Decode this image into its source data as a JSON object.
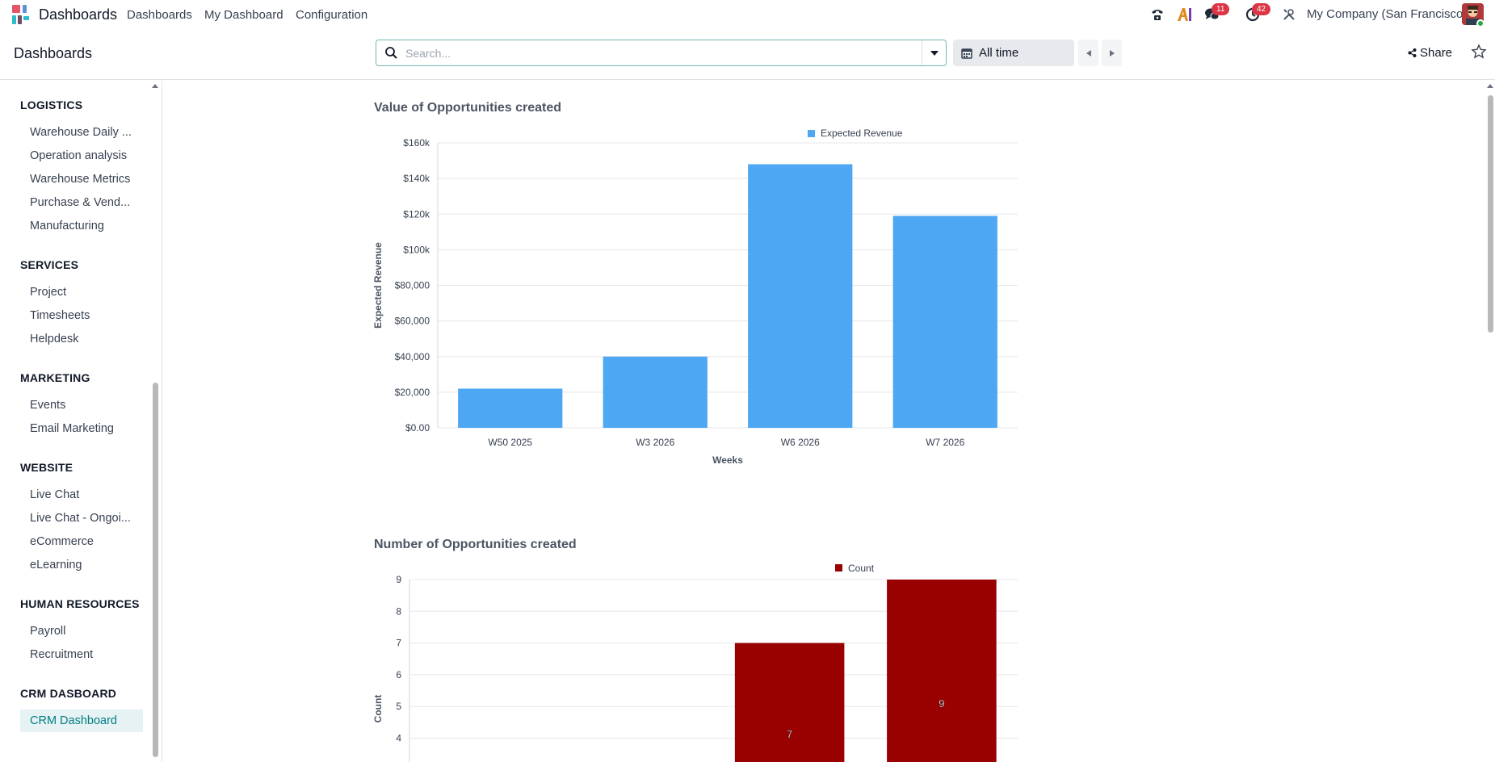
{
  "navbar": {
    "app_name": "Dashboards",
    "menus": [
      "Dashboards",
      "My Dashboard",
      "Configuration"
    ],
    "messages_count": "11",
    "activities_count": "42",
    "company": "My Company (San Francisco)",
    "icons": [
      "phone-icon",
      "ai-icon",
      "messages-icon",
      "activities-icon",
      "debug-tools-icon"
    ]
  },
  "control": {
    "breadcrumb": "Dashboards",
    "search_placeholder": "Search...",
    "date_filter": "All time",
    "share_label": "Share"
  },
  "sidebar": {
    "groups": [
      {
        "title": "LOGISTICS",
        "items": [
          "Warehouse Daily ...",
          "Operation analysis",
          "Warehouse Metrics",
          "Purchase & Vend...",
          "Manufacturing"
        ]
      },
      {
        "title": "SERVICES",
        "items": [
          "Project",
          "Timesheets",
          "Helpdesk"
        ]
      },
      {
        "title": "MARKETING",
        "items": [
          "Events",
          "Email Marketing"
        ]
      },
      {
        "title": "WEBSITE",
        "items": [
          "Live Chat",
          "Live Chat - Ongoi...",
          "eCommerce",
          "eLearning"
        ]
      },
      {
        "title": "HUMAN RESOURCES",
        "items": [
          "Payroll",
          "Recruitment"
        ]
      },
      {
        "title": "CRM DASBOARD",
        "items": [
          "CRM Dashboard"
        ]
      }
    ],
    "active_item": "CRM Dashboard"
  },
  "chart_data": [
    {
      "type": "bar",
      "title": "Value of Opportunities created",
      "legend": "Expected Revenue",
      "xlabel": "Weeks",
      "ylabel": "Expected Revenue",
      "categories": [
        "W50 2025",
        "W3 2026",
        "W6 2026",
        "W7 2026"
      ],
      "values": [
        22000,
        40000,
        148000,
        119000
      ],
      "ylim": [
        0,
        160000
      ],
      "yticks": [
        "$0.00",
        "$20,000",
        "$40,000",
        "$60,000",
        "$80,000",
        "$100k",
        "$120k",
        "$140k",
        "$160k"
      ],
      "color": "#4ea7f2",
      "grid": true,
      "legend_position": "top"
    },
    {
      "type": "bar",
      "title": "Number of Opportunities created",
      "legend": "Count",
      "ylabel": "Count",
      "categories": [
        "",
        "",
        "",
        ""
      ],
      "values": [
        null,
        null,
        7,
        9
      ],
      "data_labels": [
        "",
        "",
        "7",
        "9"
      ],
      "ylim_visible": [
        3.4,
        9
      ],
      "yticks": [
        "4",
        "5",
        "6",
        "7",
        "8",
        "9"
      ],
      "color": "#990000",
      "grid": true,
      "legend_position": "top"
    }
  ]
}
